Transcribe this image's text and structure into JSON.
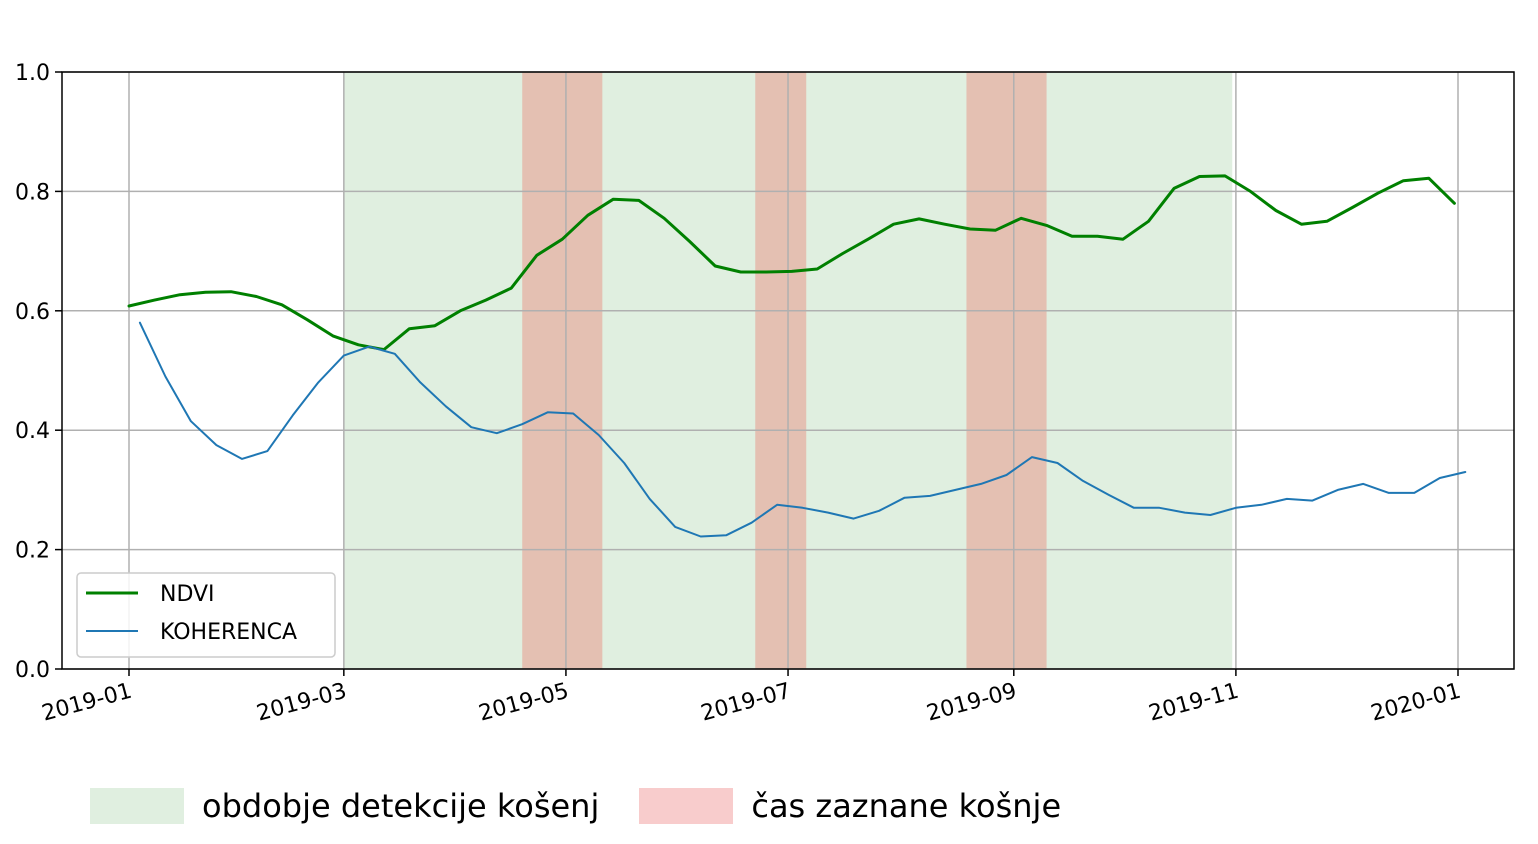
{
  "chart_data": {
    "type": "line",
    "x_axis": {
      "type": "date",
      "range": [
        "2019-01-01",
        "2020-01-01"
      ],
      "ticks": [
        "2019-01",
        "2019-03",
        "2019-05",
        "2019-07",
        "2019-09",
        "2019-11",
        "2020-01"
      ]
    },
    "y_axis": {
      "range": [
        0.0,
        1.0
      ],
      "ticks": [
        "0.0",
        "0.2",
        "0.4",
        "0.6",
        "0.8",
        "1.0"
      ]
    },
    "grid": true,
    "legend_position": "bottom-left",
    "detection_period": {
      "start": "2019-03-01",
      "end": "2019-10-31",
      "color": "#e0efe0"
    },
    "mowing_events": [
      {
        "start": "2019-04-19",
        "end": "2019-05-11",
        "color": "#e4c0b2"
      },
      {
        "start": "2019-06-22",
        "end": "2019-07-06",
        "color": "#e4c0b2"
      },
      {
        "start": "2019-08-19",
        "end": "2019-09-10",
        "color": "#e4c0b2"
      }
    ],
    "series": [
      {
        "name": "NDVI",
        "color": "#008000",
        "width": 3,
        "points": [
          [
            "2019-01-01",
            0.608
          ],
          [
            "2019-01-08",
            0.618
          ],
          [
            "2019-01-15",
            0.627
          ],
          [
            "2019-01-22",
            0.631
          ],
          [
            "2019-01-29",
            0.632
          ],
          [
            "2019-02-05",
            0.624
          ],
          [
            "2019-02-12",
            0.61
          ],
          [
            "2019-02-19",
            0.585
          ],
          [
            "2019-02-26",
            0.558
          ],
          [
            "2019-03-05",
            0.543
          ],
          [
            "2019-03-12",
            0.535
          ],
          [
            "2019-03-19",
            0.57
          ],
          [
            "2019-03-26",
            0.575
          ],
          [
            "2019-04-02",
            0.6
          ],
          [
            "2019-04-09",
            0.618
          ],
          [
            "2019-04-16",
            0.638
          ],
          [
            "2019-04-23",
            0.693
          ],
          [
            "2019-04-30",
            0.72
          ],
          [
            "2019-05-07",
            0.76
          ],
          [
            "2019-05-14",
            0.787
          ],
          [
            "2019-05-21",
            0.785
          ],
          [
            "2019-05-28",
            0.755
          ],
          [
            "2019-06-04",
            0.716
          ],
          [
            "2019-06-11",
            0.675
          ],
          [
            "2019-06-18",
            0.665
          ],
          [
            "2019-06-25",
            0.665
          ],
          [
            "2019-07-02",
            0.666
          ],
          [
            "2019-07-09",
            0.67
          ],
          [
            "2019-07-16",
            0.696
          ],
          [
            "2019-07-23",
            0.72
          ],
          [
            "2019-07-30",
            0.745
          ],
          [
            "2019-08-06",
            0.754
          ],
          [
            "2019-08-13",
            0.745
          ],
          [
            "2019-08-20",
            0.737
          ],
          [
            "2019-08-27",
            0.735
          ],
          [
            "2019-09-03",
            0.755
          ],
          [
            "2019-09-10",
            0.743
          ],
          [
            "2019-09-17",
            0.725
          ],
          [
            "2019-09-24",
            0.725
          ],
          [
            "2019-10-01",
            0.72
          ],
          [
            "2019-10-08",
            0.75
          ],
          [
            "2019-10-15",
            0.805
          ],
          [
            "2019-10-22",
            0.825
          ],
          [
            "2019-10-29",
            0.826
          ],
          [
            "2019-11-05",
            0.8
          ],
          [
            "2019-11-12",
            0.768
          ],
          [
            "2019-11-19",
            0.745
          ],
          [
            "2019-11-26",
            0.75
          ],
          [
            "2019-12-03",
            0.773
          ],
          [
            "2019-12-10",
            0.797
          ],
          [
            "2019-12-17",
            0.818
          ],
          [
            "2019-12-24",
            0.822
          ],
          [
            "2019-12-31",
            0.78
          ]
        ]
      },
      {
        "name": "KOHERENCA",
        "color": "#1f77b4",
        "width": 2,
        "points": [
          [
            "2019-01-04",
            0.58
          ],
          [
            "2019-01-11",
            0.49
          ],
          [
            "2019-01-18",
            0.415
          ],
          [
            "2019-01-25",
            0.375
          ],
          [
            "2019-02-01",
            0.352
          ],
          [
            "2019-02-08",
            0.365
          ],
          [
            "2019-02-15",
            0.425
          ],
          [
            "2019-02-22",
            0.48
          ],
          [
            "2019-03-01",
            0.525
          ],
          [
            "2019-03-08",
            0.54
          ],
          [
            "2019-03-15",
            0.528
          ],
          [
            "2019-03-22",
            0.48
          ],
          [
            "2019-03-29",
            0.44
          ],
          [
            "2019-04-05",
            0.405
          ],
          [
            "2019-04-12",
            0.395
          ],
          [
            "2019-04-19",
            0.41
          ],
          [
            "2019-04-26",
            0.43
          ],
          [
            "2019-05-03",
            0.428
          ],
          [
            "2019-05-10",
            0.392
          ],
          [
            "2019-05-17",
            0.345
          ],
          [
            "2019-05-24",
            0.285
          ],
          [
            "2019-05-31",
            0.238
          ],
          [
            "2019-06-07",
            0.222
          ],
          [
            "2019-06-14",
            0.224
          ],
          [
            "2019-06-21",
            0.245
          ],
          [
            "2019-06-28",
            0.275
          ],
          [
            "2019-07-05",
            0.27
          ],
          [
            "2019-07-12",
            0.262
          ],
          [
            "2019-07-19",
            0.252
          ],
          [
            "2019-07-26",
            0.265
          ],
          [
            "2019-08-02",
            0.287
          ],
          [
            "2019-08-09",
            0.29
          ],
          [
            "2019-08-16",
            0.3
          ],
          [
            "2019-08-23",
            0.31
          ],
          [
            "2019-08-30",
            0.325
          ],
          [
            "2019-09-06",
            0.355
          ],
          [
            "2019-09-13",
            0.345
          ],
          [
            "2019-09-20",
            0.315
          ],
          [
            "2019-09-27",
            0.292
          ],
          [
            "2019-10-04",
            0.27
          ],
          [
            "2019-10-11",
            0.27
          ],
          [
            "2019-10-18",
            0.262
          ],
          [
            "2019-10-25",
            0.258
          ],
          [
            "2019-11-01",
            0.27
          ],
          [
            "2019-11-08",
            0.275
          ],
          [
            "2019-11-15",
            0.285
          ],
          [
            "2019-11-22",
            0.282
          ],
          [
            "2019-11-29",
            0.3
          ],
          [
            "2019-12-06",
            0.31
          ],
          [
            "2019-12-13",
            0.295
          ],
          [
            "2019-12-20",
            0.295
          ],
          [
            "2019-12-27",
            0.32
          ],
          [
            "2020-01-03",
            0.33
          ]
        ]
      }
    ],
    "inset_legend": [
      {
        "label": "NDVI",
        "color": "#008000"
      },
      {
        "label": "KOHERENCA",
        "color": "#1f77b4"
      }
    ]
  },
  "bottom_legend": [
    {
      "label": "obdobje detekcije košenj",
      "color": "#e0efe0"
    },
    {
      "label": "čas zaznane košnje",
      "color": "#f8cccc"
    }
  ]
}
